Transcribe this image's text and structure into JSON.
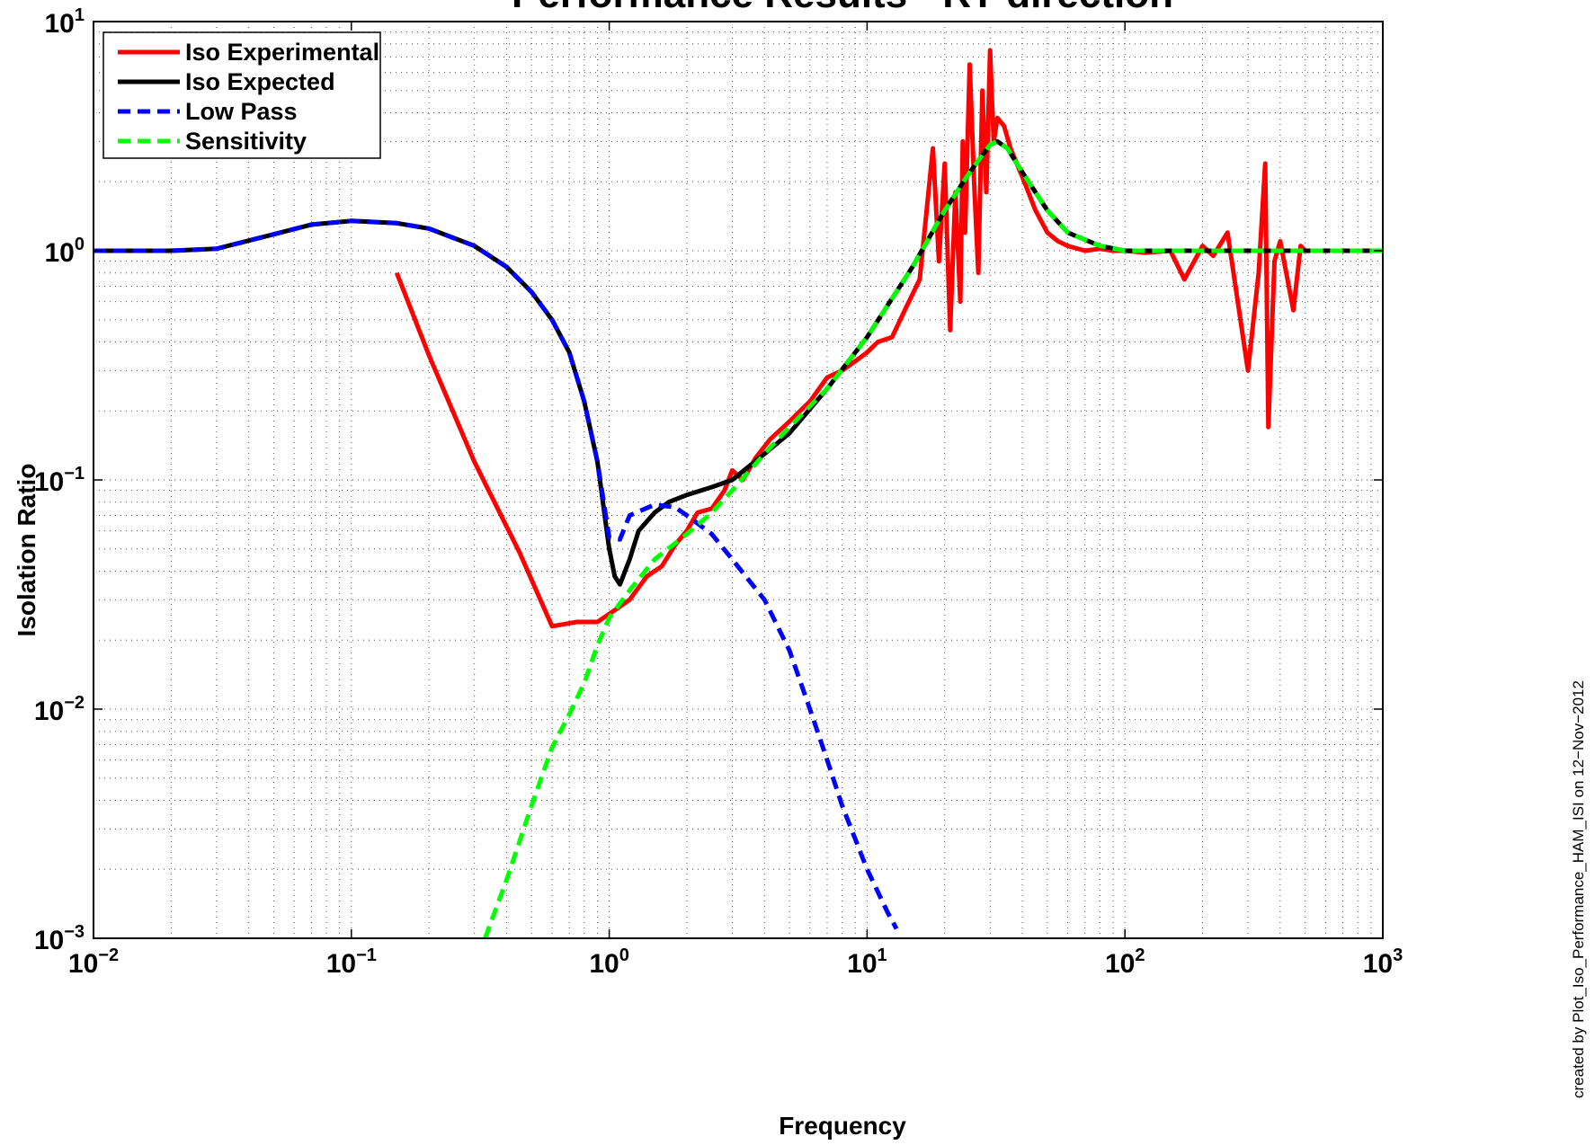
{
  "chart_data": {
    "type": "line",
    "title": "Performance Results - RY direction",
    "xlabel": "Frequency",
    "ylabel": "Isolation Ratio",
    "xscale": "log",
    "yscale": "log",
    "xlim": [
      0.01,
      1000
    ],
    "ylim": [
      0.001,
      10
    ],
    "x_ticks": [
      {
        "base": "10",
        "exp": "−2"
      },
      {
        "base": "10",
        "exp": "−1"
      },
      {
        "base": "10",
        "exp": "0"
      },
      {
        "base": "10",
        "exp": "1"
      },
      {
        "base": "10",
        "exp": "2"
      },
      {
        "base": "10",
        "exp": "3"
      }
    ],
    "y_ticks": [
      {
        "base": "10",
        "exp": "−3"
      },
      {
        "base": "10",
        "exp": "−2"
      },
      {
        "base": "10",
        "exp": "−1"
      },
      {
        "base": "10",
        "exp": "0"
      },
      {
        "base": "10",
        "exp": "1"
      }
    ],
    "grid": true,
    "legend_position": "top-left",
    "annotation": "created by Plot_Iso_Performance_HAM_ISI on 12−Nov−2012",
    "series": [
      {
        "name": "Iso Experimental",
        "color": "#ff0000",
        "dash": "solid",
        "x": [
          0.15,
          0.2,
          0.3,
          0.45,
          0.6,
          0.75,
          0.9,
          1.0,
          1.2,
          1.4,
          1.6,
          1.8,
          2.0,
          2.2,
          2.5,
          2.8,
          3.0,
          3.3,
          3.7,
          4.2,
          5.0,
          6.0,
          7.0,
          8.0,
          9.0,
          10.0,
          11.0,
          12.5,
          14.0,
          16.0,
          18.0,
          19.0,
          20.0,
          21.0,
          22.0,
          23.0,
          23.5,
          24.0,
          25.0,
          26.0,
          27.0,
          28.0,
          29.0,
          30.0,
          30.5,
          31.0,
          32.0,
          34.0,
          36.0,
          40.0,
          45.0,
          50.0,
          55.0,
          60.0,
          70.0,
          80.0,
          90.0,
          100.0,
          120.0,
          150.0,
          170.0,
          200.0,
          220.0,
          250.0,
          300.0,
          330.0,
          350.0,
          360.0,
          380.0,
          400.0,
          450.0,
          480.0,
          500.0
        ],
        "y": [
          0.8,
          0.35,
          0.12,
          0.048,
          0.023,
          0.024,
          0.024,
          0.026,
          0.03,
          0.038,
          0.042,
          0.052,
          0.06,
          0.072,
          0.075,
          0.09,
          0.11,
          0.1,
          0.125,
          0.15,
          0.18,
          0.22,
          0.28,
          0.3,
          0.33,
          0.36,
          0.4,
          0.42,
          0.55,
          0.75,
          2.8,
          0.9,
          2.4,
          0.45,
          1.8,
          0.6,
          3.0,
          1.2,
          6.5,
          2.0,
          0.8,
          5.0,
          1.8,
          7.5,
          4.5,
          3.0,
          3.8,
          3.5,
          2.8,
          2.1,
          1.5,
          1.2,
          1.1,
          1.05,
          1.0,
          1.02,
          1.0,
          1.0,
          0.98,
          1.0,
          0.75,
          1.05,
          0.95,
          1.2,
          0.3,
          0.8,
          2.4,
          0.17,
          0.9,
          1.1,
          0.55,
          1.05,
          1.0
        ]
      },
      {
        "name": "Iso Expected",
        "color": "#000000",
        "dash": "solid",
        "x": [
          0.01,
          0.02,
          0.03,
          0.05,
          0.07,
          0.1,
          0.15,
          0.2,
          0.3,
          0.4,
          0.5,
          0.6,
          0.7,
          0.8,
          0.9,
          1.0,
          1.05,
          1.1,
          1.2,
          1.3,
          1.5,
          1.7,
          2.0,
          2.5,
          3.0,
          4.0,
          5.0,
          7.0,
          10.0,
          15.0,
          20.0,
          25.0,
          30.0,
          32.0,
          35.0,
          40.0,
          50.0,
          60.0,
          80.0,
          100.0,
          200.0,
          500.0,
          1000.0
        ],
        "y": [
          1.0,
          1.0,
          1.02,
          1.18,
          1.3,
          1.35,
          1.32,
          1.25,
          1.05,
          0.85,
          0.66,
          0.5,
          0.36,
          0.22,
          0.12,
          0.05,
          0.038,
          0.035,
          0.045,
          0.06,
          0.072,
          0.08,
          0.086,
          0.093,
          0.1,
          0.13,
          0.16,
          0.25,
          0.42,
          0.85,
          1.5,
          2.2,
          2.9,
          3.0,
          2.8,
          2.2,
          1.5,
          1.2,
          1.05,
          1.0,
          1.0,
          1.0,
          1.0
        ]
      },
      {
        "name": "Low Pass",
        "color": "#0000ff",
        "dash": "dashed",
        "x": [
          0.01,
          0.02,
          0.03,
          0.05,
          0.07,
          0.1,
          0.15,
          0.2,
          0.3,
          0.4,
          0.5,
          0.6,
          0.7,
          0.8,
          0.9,
          1.0,
          1.1,
          1.2,
          1.5,
          1.8,
          2.0,
          2.5,
          3.0,
          4.0,
          5.0,
          6.0,
          7.0,
          8.0,
          10.0,
          12.0,
          13.0
        ],
        "y": [
          1.0,
          1.0,
          1.02,
          1.18,
          1.3,
          1.35,
          1.32,
          1.25,
          1.05,
          0.85,
          0.66,
          0.5,
          0.36,
          0.22,
          0.12,
          0.056,
          0.055,
          0.07,
          0.078,
          0.076,
          0.07,
          0.058,
          0.045,
          0.03,
          0.018,
          0.01,
          0.006,
          0.0038,
          0.002,
          0.0013,
          0.0011
        ]
      },
      {
        "name": "Sensitivity",
        "color": "#00ff00",
        "dash": "dashed",
        "x": [
          0.33,
          0.4,
          0.5,
          0.6,
          0.7,
          0.8,
          0.9,
          1.0,
          1.2,
          1.5,
          2.0,
          2.5,
          3.0,
          4.0,
          5.0,
          7.0,
          10.0,
          15.0,
          20.0,
          25.0,
          30.0,
          32.0,
          35.0,
          40.0,
          50.0,
          60.0,
          80.0,
          100.0,
          200.0,
          500.0,
          1000.0
        ],
        "y": [
          0.001,
          0.0018,
          0.0038,
          0.0068,
          0.0095,
          0.013,
          0.019,
          0.025,
          0.033,
          0.045,
          0.058,
          0.072,
          0.09,
          0.13,
          0.17,
          0.25,
          0.42,
          0.85,
          1.5,
          2.2,
          2.9,
          3.0,
          2.8,
          2.2,
          1.5,
          1.2,
          1.05,
          1.0,
          1.0,
          1.0,
          1.0
        ]
      }
    ]
  }
}
